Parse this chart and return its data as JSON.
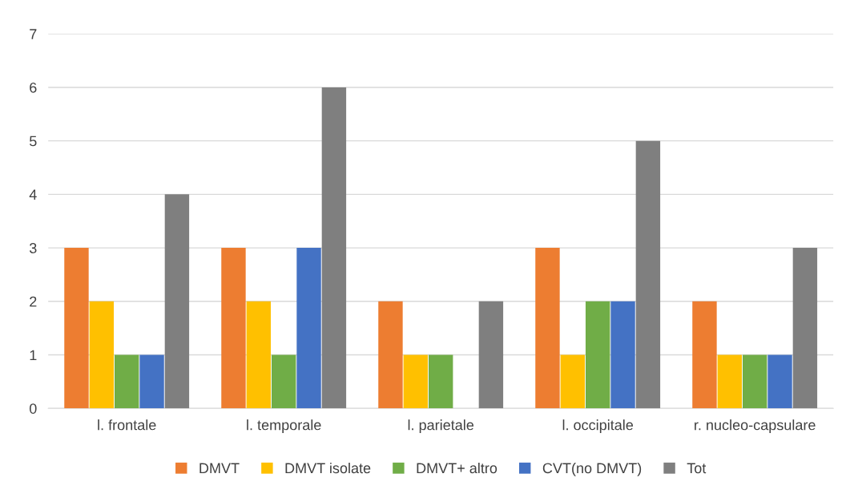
{
  "chart_data": {
    "type": "bar",
    "categories": [
      "l. frontale",
      "l. temporale",
      "l. parietale",
      "l. occipitale",
      "r. nucleo-capsulare"
    ],
    "series": [
      {
        "name": "DMVT",
        "color": "#ed7d31",
        "values": [
          3,
          3,
          2,
          3,
          2
        ]
      },
      {
        "name": "DMVT isolate",
        "color": "#ffc000",
        "values": [
          2,
          2,
          1,
          1,
          1
        ]
      },
      {
        "name": "DMVT+ altro",
        "color": "#70ad47",
        "values": [
          1,
          1,
          1,
          2,
          1
        ]
      },
      {
        "name": "CVT(no DMVT)",
        "color": "#4472c4",
        "values": [
          1,
          3,
          0,
          2,
          1
        ]
      },
      {
        "name": "Tot",
        "color": "#7f7f7f",
        "values": [
          4,
          6,
          2,
          5,
          3
        ]
      }
    ],
    "ylim": [
      0,
      7
    ],
    "yticks": [
      0,
      1,
      2,
      3,
      4,
      5,
      6,
      7
    ],
    "grid": "y",
    "legend": "bottom"
  }
}
